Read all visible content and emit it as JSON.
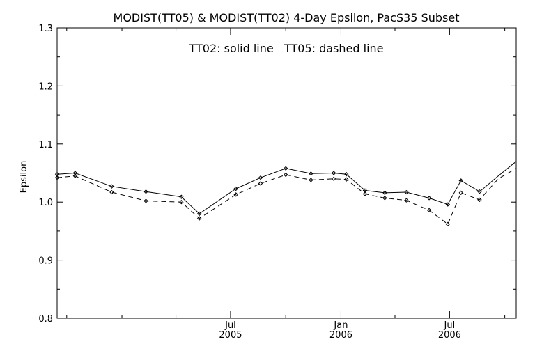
{
  "chart_data": {
    "type": "line",
    "title": "MODIST(TT05) & MODIST(TT02) 4-Day Epsilon, PacS35 Subset",
    "annotation": "TT02: solid line   TT05: dashed line",
    "xlabel": "",
    "ylabel": "Epsilon",
    "ylim": [
      0.8,
      1.3
    ],
    "yticks": [
      "0.8",
      "0.9",
      "1.0",
      "1.1",
      "1.2",
      "1.3"
    ],
    "xlim": [
      "2004-09-15",
      "2006-10-20"
    ],
    "xticks": [
      {
        "date": "2005-07-01",
        "line1": "Jul",
        "line2": "2005"
      },
      {
        "date": "2006-01-01",
        "line1": "Jan",
        "line2": "2006"
      },
      {
        "date": "2006-07-01",
        "line1": "Jul",
        "line2": "2006"
      }
    ],
    "minor_xticks": [
      "2004-10-01",
      "2005-01-01",
      "2005-04-01",
      "2005-10-01",
      "2006-04-01",
      "2006-10-01"
    ],
    "series": [
      {
        "name": "TT02",
        "style": "solid",
        "x": [
          "2004-09-15",
          "2004-10-15",
          "2004-12-15",
          "2005-02-10",
          "2005-04-10",
          "2005-05-10",
          "2005-07-10",
          "2005-08-20",
          "2005-10-01",
          "2005-11-12",
          "2005-12-20",
          "2006-01-10",
          "2006-02-10",
          "2006-03-15",
          "2006-04-20",
          "2006-05-28",
          "2006-06-28",
          "2006-07-20",
          "2006-08-20",
          "2006-09-20",
          "2006-10-20"
        ],
        "y": [
          1.048,
          1.05,
          1.027,
          1.018,
          1.009,
          0.98,
          1.023,
          1.042,
          1.058,
          1.049,
          1.05,
          1.048,
          1.02,
          1.016,
          1.017,
          1.007,
          0.996,
          1.037,
          1.018,
          1.045,
          1.07
        ]
      },
      {
        "name": "TT05",
        "style": "dashed",
        "x": [
          "2004-09-15",
          "2004-10-15",
          "2004-12-15",
          "2005-02-10",
          "2005-04-10",
          "2005-05-10",
          "2005-07-10",
          "2005-08-20",
          "2005-10-01",
          "2005-11-12",
          "2005-12-20",
          "2006-01-10",
          "2006-02-10",
          "2006-03-15",
          "2006-04-20",
          "2006-05-28",
          "2006-06-28",
          "2006-07-20",
          "2006-08-20",
          "2006-09-20",
          "2006-10-20"
        ],
        "y": [
          1.042,
          1.045,
          1.017,
          1.002,
          1.0,
          0.972,
          1.013,
          1.032,
          1.047,
          1.038,
          1.04,
          1.039,
          1.014,
          1.007,
          1.003,
          0.986,
          0.962,
          1.016,
          1.004,
          1.04,
          1.058
        ]
      }
    ],
    "marker_x": [
      "2004-09-15",
      "2004-10-15",
      "2004-12-15",
      "2005-02-10",
      "2005-04-10",
      "2005-05-10",
      "2005-07-10",
      "2005-08-20",
      "2005-10-01",
      "2005-11-12",
      "2005-12-20",
      "2006-01-10",
      "2006-02-10",
      "2006-03-15",
      "2006-04-20",
      "2006-05-28",
      "2006-06-28",
      "2006-07-20",
      "2006-08-20"
    ],
    "grid": false,
    "legend": "none"
  }
}
